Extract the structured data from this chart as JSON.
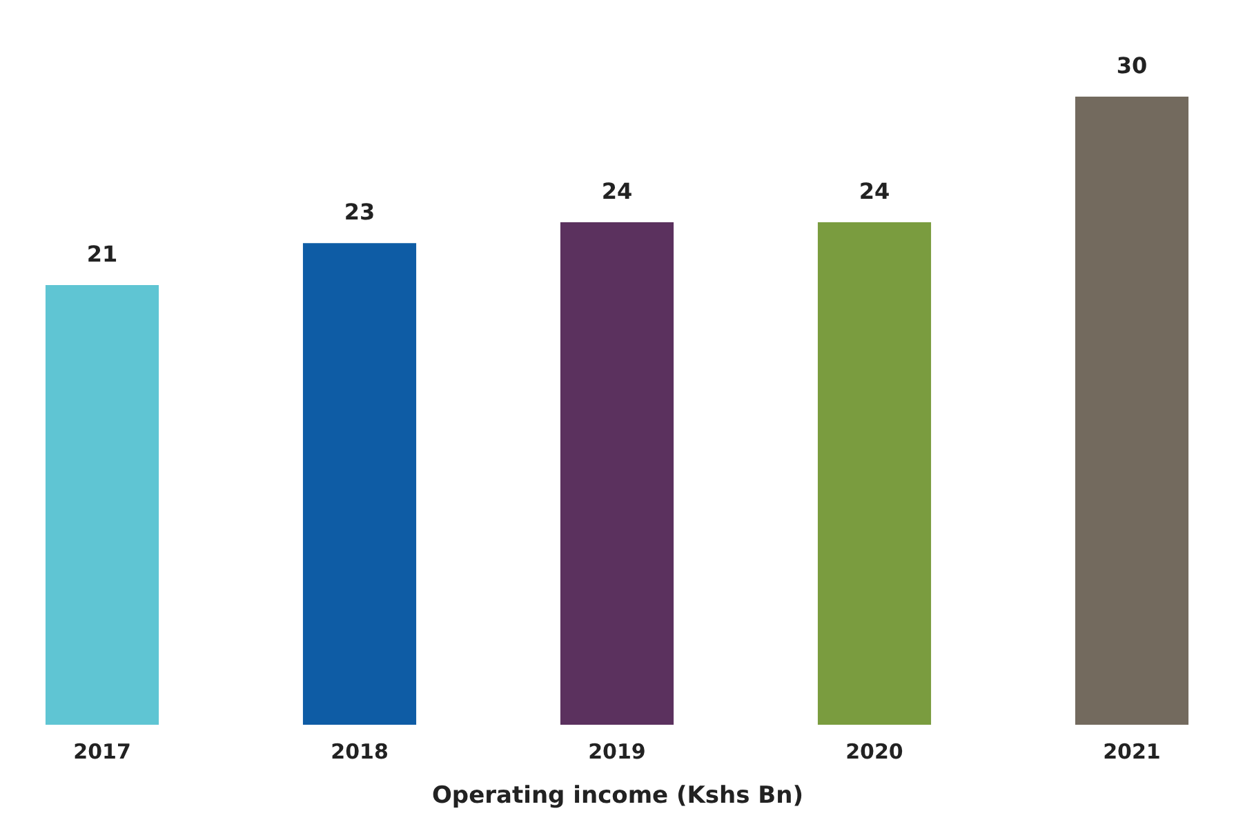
{
  "chart_data": {
    "type": "bar",
    "xlabel": "Operating income (Kshs Bn)",
    "categories": [
      "2017",
      "2018",
      "2019",
      "2020",
      "2021"
    ],
    "values": [
      21,
      23,
      24,
      24,
      30
    ],
    "colors": [
      "#5fc5d3",
      "#0e5ca5",
      "#5b315e",
      "#7a9c3f",
      "#736a5e"
    ],
    "data_labels": true
  }
}
